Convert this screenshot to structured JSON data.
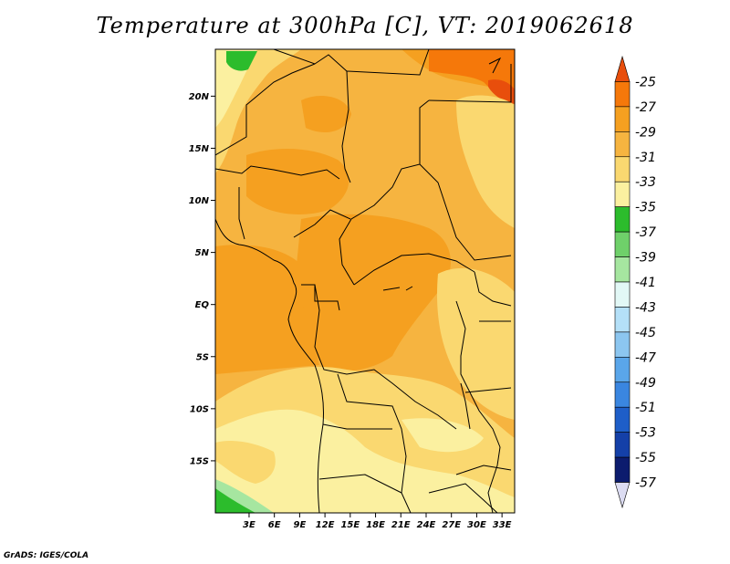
{
  "title": "Temperature at 300hPa [C], VT: 2019062618",
  "credit": "GrADS: IGES/COLA",
  "map": {
    "lon_range": [
      -1,
      34.5
    ],
    "lat_range": [
      -20,
      24.5
    ],
    "lat_ticks": [
      {
        "value": 20,
        "label": "20N"
      },
      {
        "value": 15,
        "label": "15N"
      },
      {
        "value": 10,
        "label": "10N"
      },
      {
        "value": 5,
        "label": "5N"
      },
      {
        "value": 0,
        "label": "EQ"
      },
      {
        "value": -5,
        "label": "5S"
      },
      {
        "value": -10,
        "label": "10S"
      },
      {
        "value": -15,
        "label": "15S"
      }
    ],
    "lon_ticks": [
      {
        "value": 3,
        "label": "3E"
      },
      {
        "value": 6,
        "label": "6E"
      },
      {
        "value": 9,
        "label": "9E"
      },
      {
        "value": 12,
        "label": "12E"
      },
      {
        "value": 15,
        "label": "15E"
      },
      {
        "value": 18,
        "label": "18E"
      },
      {
        "value": 21,
        "label": "21E"
      },
      {
        "value": 24,
        "label": "24E"
      },
      {
        "value": 27,
        "label": "27E"
      },
      {
        "value": 30,
        "label": "30E"
      },
      {
        "value": 33,
        "label": "33E"
      }
    ]
  },
  "colorbar": {
    "labels": [
      "-25",
      "-27",
      "-29",
      "-31",
      "-33",
      "-35",
      "-37",
      "-39",
      "-41",
      "-43",
      "-45",
      "-47",
      "-49",
      "-51",
      "-53",
      "-55",
      "-57"
    ],
    "colors": [
      "#e84e0c",
      "#f5780a",
      "#f5a020",
      "#f6b440",
      "#fad870",
      "#fbf0a0",
      "#2cbc2c",
      "#6fd06a",
      "#a6e6a0",
      "#e2f8f6",
      "#b4e0f8",
      "#8cc6f0",
      "#5aa6ea",
      "#3a86e0",
      "#1e5ec8",
      "#1440a8",
      "#0c1c6e",
      "#dcdcf2"
    ]
  }
}
